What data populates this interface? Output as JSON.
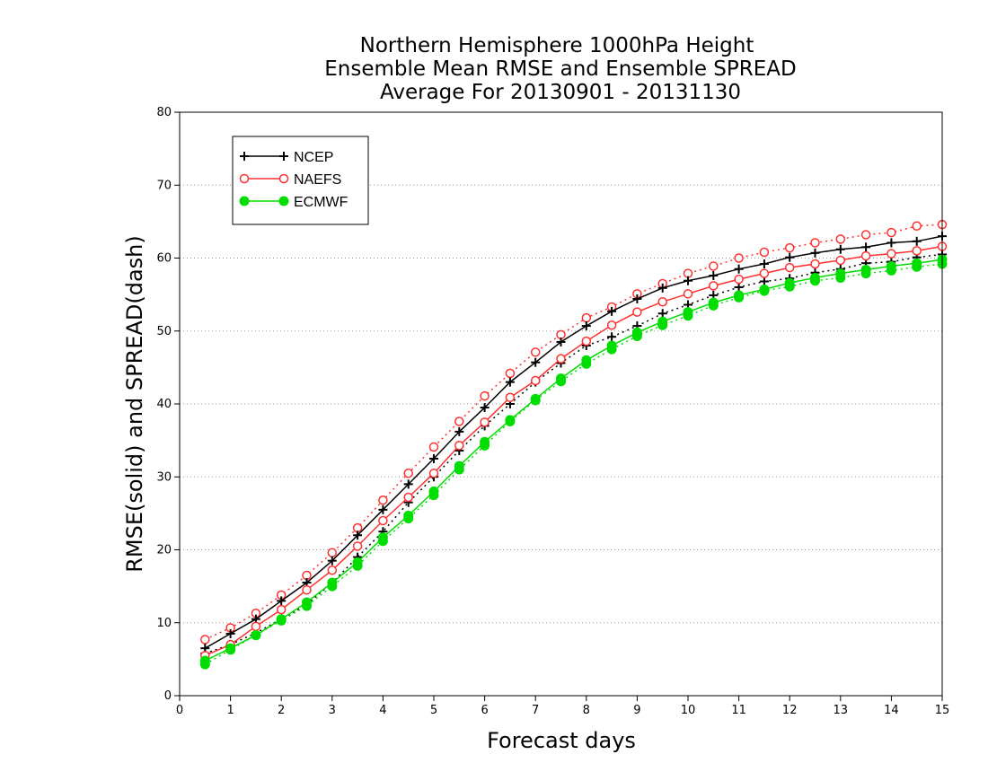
{
  "chart_data": {
    "type": "line",
    "title": [
      "Northern Hemisphere 1000hPa Height",
      "Ensemble Mean RMSE and Ensemble SPREAD",
      "Average For 20130901 - 20131130"
    ],
    "xlabel": "Forecast days",
    "ylabel": "RMSE(solid) and SPREAD(dash)",
    "xlim": [
      0,
      15
    ],
    "ylim": [
      0,
      80
    ],
    "xticks": [
      "0",
      "1",
      "2",
      "3",
      "4",
      "5",
      "6",
      "7",
      "8",
      "9",
      "10",
      "11",
      "12",
      "13",
      "14",
      "15"
    ],
    "yticks": [
      "0",
      "10",
      "20",
      "30",
      "40",
      "50",
      "60",
      "70",
      "80"
    ],
    "grid": "horizontal dotted",
    "legend_position": "top-left",
    "x": [
      0.5,
      1,
      1.5,
      2,
      2.5,
      3,
      3.5,
      4,
      4.5,
      5,
      5.5,
      6,
      6.5,
      7,
      7.5,
      8,
      8.5,
      9,
      9.5,
      10,
      10.5,
      11,
      11.5,
      12,
      12.5,
      13,
      13.5,
      14,
      14.5,
      15
    ],
    "series": [
      {
        "name": "NCEP",
        "metric": "RMSE",
        "style": "solid",
        "color": "#000000",
        "marker": "plus",
        "values": [
          6.5,
          8.5,
          10.5,
          13.0,
          15.5,
          18.5,
          22.0,
          25.5,
          29.0,
          32.5,
          36.2,
          39.5,
          43.0,
          45.7,
          48.5,
          50.7,
          52.7,
          54.4,
          55.9,
          56.9,
          57.6,
          58.5,
          59.2,
          60.1,
          60.7,
          61.2,
          61.5,
          62.1,
          62.3,
          63.0
        ]
      },
      {
        "name": "NAEFS",
        "metric": "RMSE",
        "style": "solid",
        "color": "#ff3030",
        "marker": "open-circle",
        "values": [
          5.5,
          7.0,
          9.5,
          11.8,
          14.5,
          17.2,
          20.5,
          24.0,
          27.2,
          30.5,
          34.3,
          37.5,
          40.9,
          43.2,
          46.2,
          48.6,
          50.8,
          52.6,
          54.0,
          55.1,
          56.2,
          57.1,
          57.9,
          58.7,
          59.2,
          59.7,
          60.3,
          60.6,
          61.0,
          61.6
        ]
      },
      {
        "name": "ECMWF",
        "metric": "RMSE",
        "style": "solid",
        "color": "#00dd00",
        "marker": "filled-circle",
        "values": [
          4.8,
          6.5,
          8.3,
          10.5,
          12.8,
          15.5,
          18.3,
          21.7,
          24.7,
          28.0,
          31.5,
          34.8,
          37.8,
          40.7,
          43.5,
          46.0,
          48.0,
          49.8,
          51.3,
          52.6,
          53.9,
          54.9,
          55.7,
          56.6,
          57.3,
          57.9,
          58.4,
          58.9,
          59.3,
          59.8
        ]
      },
      {
        "name": "NCEP",
        "metric": "SPREAD",
        "style": "dash",
        "color": "#000000",
        "marker": "plus",
        "values": [
          5.8,
          7.0,
          8.6,
          10.5,
          12.5,
          15.5,
          19.0,
          22.5,
          26.5,
          30.0,
          33.6,
          37.0,
          40.0,
          43.0,
          45.6,
          48.0,
          49.2,
          50.7,
          52.4,
          53.6,
          54.9,
          56.0,
          56.8,
          57.2,
          58.0,
          58.5,
          59.3,
          59.5,
          60.1,
          60.5
        ]
      },
      {
        "name": "NAEFS",
        "metric": "SPREAD",
        "style": "dash",
        "color": "#ff3030",
        "marker": "open-circle",
        "values": [
          7.7,
          9.3,
          11.3,
          13.8,
          16.5,
          19.6,
          23.0,
          26.8,
          30.5,
          34.1,
          37.6,
          41.1,
          44.2,
          47.1,
          49.5,
          51.8,
          53.3,
          55.1,
          56.5,
          57.9,
          58.9,
          60.0,
          60.8,
          61.4,
          62.1,
          62.6,
          63.2,
          63.5,
          64.4,
          64.6
        ]
      },
      {
        "name": "ECMWF",
        "metric": "SPREAD",
        "style": "dash",
        "color": "#00dd00",
        "marker": "filled-circle",
        "values": [
          4.3,
          6.3,
          8.3,
          10.3,
          12.3,
          15.0,
          17.8,
          21.2,
          24.3,
          27.5,
          31.0,
          34.3,
          37.6,
          40.5,
          43.1,
          45.5,
          47.5,
          49.3,
          50.8,
          52.1,
          53.5,
          54.6,
          55.5,
          56.1,
          56.9,
          57.3,
          57.9,
          58.3,
          58.8,
          59.2
        ]
      }
    ],
    "legend": [
      {
        "name": "NCEP",
        "color": "#000000",
        "marker": "plus"
      },
      {
        "name": "NAEFS",
        "color": "#ff3030",
        "marker": "open-circle"
      },
      {
        "name": "ECMWF",
        "color": "#00dd00",
        "marker": "filled-circle"
      }
    ]
  }
}
